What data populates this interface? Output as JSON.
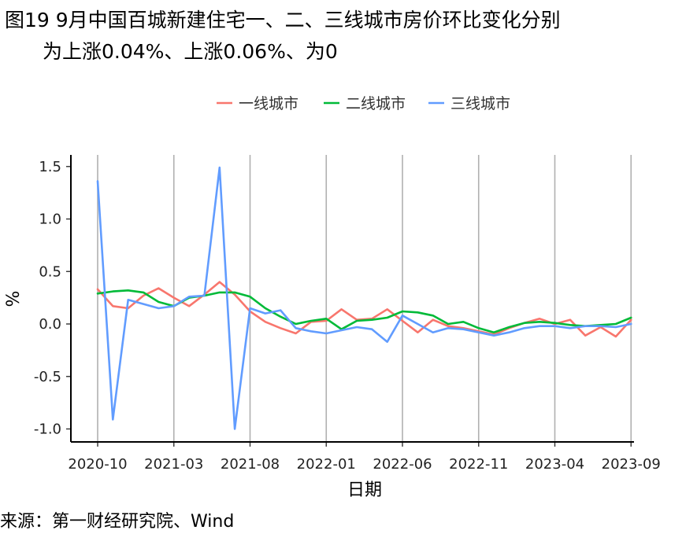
{
  "title": {
    "line1": "图19 9月中国百城新建住宅一、二、三线城市房价环比变化分别",
    "line2": "为上涨0.04%、上涨0.06%、为0"
  },
  "source": "来源：第一财经研究院、Wind",
  "chart_data": {
    "type": "line",
    "xlabel": "日期",
    "ylabel": "%",
    "ylim": [
      -1.15,
      1.6
    ],
    "yticks": [
      -1.0,
      -0.5,
      0.0,
      0.5,
      1.0,
      1.5
    ],
    "ytick_labels": [
      "-1.0",
      "-0.5",
      "0.0",
      "0.5",
      "1.0",
      "1.5"
    ],
    "xticks": [
      "2020-10",
      "2021-03",
      "2021-08",
      "2022-01",
      "2022-06",
      "2022-11",
      "2023-04",
      "2023-09"
    ],
    "grid": "vertical lines at x ticks",
    "legend_position": "top",
    "x": [
      "2020-10",
      "2020-11",
      "2020-12",
      "2021-01",
      "2021-02",
      "2021-03",
      "2021-04",
      "2021-05",
      "2021-06",
      "2021-07",
      "2021-08",
      "2021-09",
      "2021-10",
      "2021-11",
      "2021-12",
      "2022-01",
      "2022-02",
      "2022-03",
      "2022-04",
      "2022-05",
      "2022-06",
      "2022-07",
      "2022-08",
      "2022-09",
      "2022-10",
      "2022-11",
      "2022-12",
      "2023-01",
      "2023-02",
      "2023-03",
      "2023-04",
      "2023-05",
      "2023-06",
      "2023-07",
      "2023-08",
      "2023-09"
    ],
    "series": [
      {
        "name": "一线城市",
        "color": "#F8766D",
        "values": [
          0.33,
          0.17,
          0.15,
          0.27,
          0.34,
          0.25,
          0.17,
          0.28,
          0.4,
          0.28,
          0.12,
          0.02,
          -0.04,
          -0.09,
          0.02,
          0.03,
          0.14,
          0.04,
          0.05,
          0.14,
          0.03,
          -0.08,
          0.04,
          -0.02,
          -0.04,
          -0.07,
          -0.1,
          -0.04,
          0.01,
          0.05,
          0.0,
          0.04,
          -0.11,
          -0.03,
          -0.12,
          0.04
        ]
      },
      {
        "name": "二线城市",
        "color": "#00BA38",
        "values": [
          0.29,
          0.31,
          0.32,
          0.3,
          0.21,
          0.17,
          0.25,
          0.27,
          0.3,
          0.3,
          0.26,
          0.15,
          0.07,
          0.0,
          0.03,
          0.05,
          -0.05,
          0.03,
          0.04,
          0.06,
          0.12,
          0.11,
          0.08,
          0.0,
          0.02,
          -0.04,
          -0.08,
          -0.03,
          0.01,
          0.02,
          0.01,
          -0.01,
          -0.02,
          -0.01,
          0.0,
          0.06
        ]
      },
      {
        "name": "三线城市",
        "color": "#619CFF",
        "values": [
          1.36,
          -0.91,
          0.23,
          0.19,
          0.15,
          0.17,
          0.26,
          0.27,
          1.49,
          -1.0,
          0.15,
          0.1,
          0.13,
          -0.04,
          -0.07,
          -0.09,
          -0.06,
          -0.03,
          -0.05,
          -0.17,
          0.08,
          0.0,
          -0.08,
          -0.04,
          -0.05,
          -0.08,
          -0.11,
          -0.08,
          -0.04,
          -0.02,
          -0.02,
          -0.04,
          -0.02,
          -0.02,
          -0.03,
          0.0
        ]
      }
    ]
  }
}
